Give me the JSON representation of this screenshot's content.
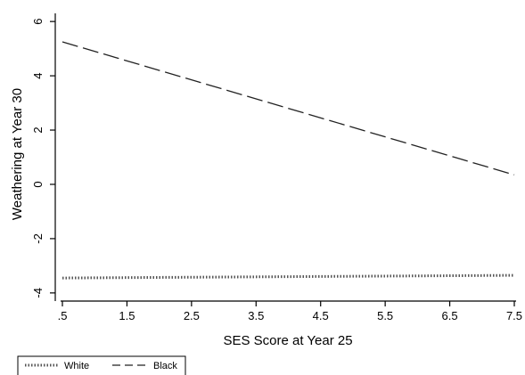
{
  "chart_data": {
    "type": "line",
    "xlabel": "SES Score at Year 25",
    "ylabel": "Weathering at Year 30",
    "xlim": [
      0.5,
      7.5
    ],
    "ylim": [
      -4.3,
      6.3
    ],
    "x_ticks": [
      0.5,
      1.5,
      2.5,
      3.5,
      4.5,
      5.5,
      6.5,
      7.5
    ],
    "x_tick_labels": [
      ".5",
      "1.5",
      "2.5",
      "3.5",
      "4.5",
      "5.5",
      "6.5",
      "7.5"
    ],
    "y_ticks": [
      -4,
      -2,
      0,
      2,
      4,
      6
    ],
    "y_tick_labels": [
      "-4",
      "-2",
      "0",
      "2",
      "4",
      "6"
    ],
    "grid": false,
    "legend_position": "bottom-left",
    "series": [
      {
        "name": "White",
        "style": "dotted",
        "color": "#555555",
        "x": [
          0.5,
          7.5
        ],
        "y": [
          -3.45,
          -3.35
        ]
      },
      {
        "name": "Black",
        "style": "dashed",
        "color": "#222222",
        "x": [
          0.5,
          7.5
        ],
        "y": [
          5.25,
          0.35
        ]
      }
    ]
  }
}
